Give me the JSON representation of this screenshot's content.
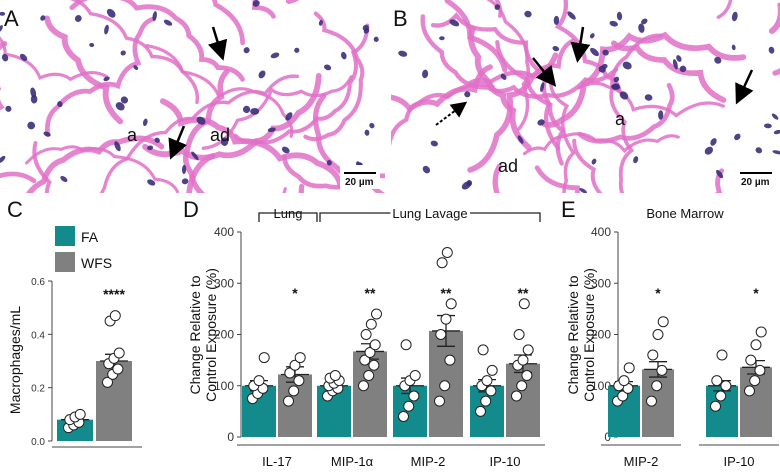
{
  "panels": {
    "A": {
      "letter": "A",
      "labels": [
        "a",
        "ad"
      ],
      "scale_bar": "20 µm"
    },
    "B": {
      "letter": "B",
      "labels": [
        "a",
        "ad"
      ],
      "scale_bar": "20 µm"
    },
    "C": {
      "letter": "C"
    },
    "D": {
      "letter": "D"
    },
    "E": {
      "letter": "E"
    }
  },
  "colors": {
    "FA": "#138a8c",
    "WFS": "#808080",
    "tissue_pink": "#e070c8",
    "nucleus": "#3b2f7a"
  },
  "chart_data": [
    {
      "panel": "C",
      "type": "bar",
      "ylabel": "Macrophages/mL",
      "ylim": [
        0,
        0.6
      ],
      "yticks": [
        0.0,
        0.2,
        0.4,
        0.6
      ],
      "tick_labels": [
        "0.0",
        "0.2",
        "0.4",
        "0.6"
      ],
      "legend": [
        {
          "name": "FA",
          "color": "#138a8c"
        },
        {
          "name": "WFS",
          "color": "#808080"
        }
      ],
      "legend_position": "top-left",
      "series": [
        {
          "name": "FA",
          "values": [
            0.08
          ],
          "error": [
            0.01
          ],
          "points": [
            0.05,
            0.06,
            0.07,
            0.08,
            0.09,
            0.1
          ]
        },
        {
          "name": "WFS",
          "values": [
            0.3
          ],
          "error": [
            0.025
          ],
          "points": [
            0.22,
            0.25,
            0.27,
            0.29,
            0.31,
            0.33,
            0.45,
            0.47
          ]
        }
      ],
      "annotations": [
        "****"
      ]
    },
    {
      "panel": "D",
      "type": "bar",
      "ylabel": "Change Relative to Control Exposure (%)",
      "ylim": [
        0,
        400
      ],
      "yticks": [
        0,
        100,
        200,
        300,
        400
      ],
      "tick_labels": [
        "0",
        "100",
        "200",
        "300",
        "400"
      ],
      "group_labels": [
        "Lung",
        "Lung Lavage"
      ],
      "categories": [
        "IL-17",
        "MIP-1α",
        "MIP-2",
        "IP-10"
      ],
      "series": [
        {
          "name": "FA",
          "values": [
            100,
            100,
            100,
            100
          ],
          "error": [
            10,
            5,
            15,
            12
          ]
        },
        {
          "name": "WFS",
          "values": [
            122,
            167,
            207,
            143
          ],
          "error": [
            15,
            15,
            30,
            17
          ]
        }
      ],
      "points": {
        "IL-17": {
          "FA": [
            75,
            85,
            95,
            100,
            110,
            155
          ],
          "WFS": [
            70,
            90,
            110,
            125,
            140,
            155
          ]
        },
        "MIP-1α": {
          "FA": [
            80,
            90,
            95,
            100,
            105,
            110,
            115,
            120
          ],
          "WFS": [
            100,
            120,
            140,
            150,
            165,
            180,
            200,
            220,
            240
          ]
        },
        "MIP-2": {
          "FA": [
            40,
            60,
            80,
            100,
            110,
            120,
            180
          ],
          "WFS": [
            70,
            100,
            150,
            200,
            230,
            260,
            340,
            360
          ]
        },
        "IP-10": {
          "FA": [
            50,
            70,
            90,
            100,
            110,
            130,
            170
          ],
          "WFS": [
            80,
            100,
            120,
            140,
            150,
            170,
            200,
            260
          ]
        }
      },
      "annotations": [
        "*",
        "**",
        "**",
        "**"
      ]
    },
    {
      "panel": "E",
      "type": "bar",
      "title": "Bone Marrow",
      "ylabel": "Change Relative to Control Exposure (%)",
      "ylim": [
        0,
        400
      ],
      "yticks": [
        0,
        100,
        200,
        300,
        400
      ],
      "tick_labels": [
        "0",
        "100",
        "200",
        "300",
        "400"
      ],
      "categories": [
        "MIP-2",
        "IP-10"
      ],
      "series": [
        {
          "name": "FA",
          "values": [
            100,
            100
          ],
          "error": [
            8,
            10
          ]
        },
        {
          "name": "WFS",
          "values": [
            132,
            136
          ],
          "error": [
            15,
            13
          ]
        }
      ],
      "points": {
        "MIP-2": {
          "FA": [
            70,
            80,
            95,
            100,
            110,
            135
          ],
          "WFS": [
            70,
            100,
            130,
            160,
            200,
            225
          ]
        },
        "IP-10": {
          "FA": [
            60,
            80,
            100,
            110,
            160
          ],
          "WFS": [
            90,
            110,
            130,
            150,
            180,
            205
          ]
        }
      },
      "annotations": [
        "*",
        "*"
      ]
    }
  ]
}
